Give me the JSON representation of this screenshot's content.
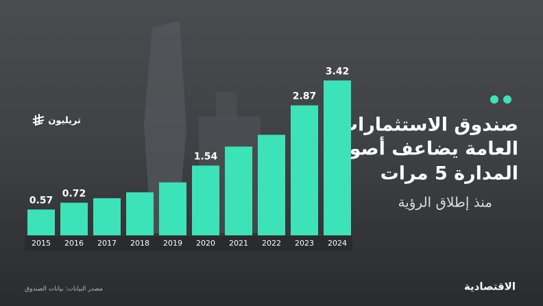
{
  "chart_data": {
    "type": "bar",
    "title": [
      "صندوق الاستثمارات",
      "العامة يضاعف أصوله",
      "المدارة 5 مرات"
    ],
    "subtitle": "منذ إطلاق الرؤية",
    "unit": "تريليون",
    "source": "مصدر البيانات: بيانات الصندوق",
    "brand": "الاقتصادية",
    "categories": [
      "2015",
      "2016",
      "2017",
      "2018",
      "2019",
      "2020",
      "2021",
      "2022",
      "2023",
      "2024"
    ],
    "values": [
      0.57,
      0.72,
      0.82,
      0.95,
      1.17,
      1.54,
      1.96,
      2.22,
      2.87,
      3.42
    ],
    "value_labels": [
      "0.57",
      "0.72",
      null,
      null,
      null,
      "1.54",
      null,
      null,
      "2.87",
      "3.42"
    ],
    "color": "#3de3b8",
    "ylim": [
      0,
      3.5
    ]
  }
}
